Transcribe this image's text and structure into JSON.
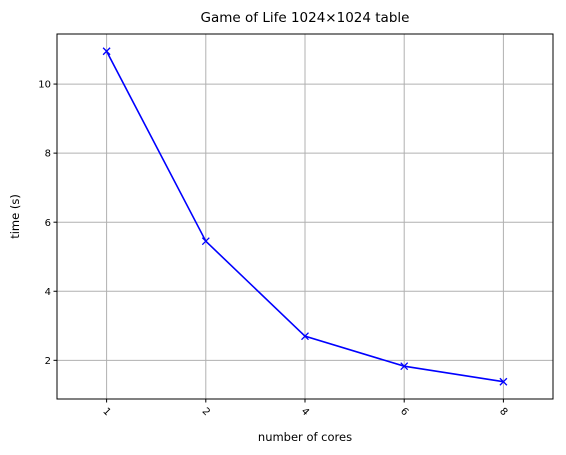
{
  "chart_data": {
    "type": "line",
    "title": "Game of Life 1024×1024 table",
    "xlabel": "number of cores",
    "ylabel": "time (s)",
    "categories": [
      "1",
      "2",
      "4",
      "6",
      "8"
    ],
    "series": [
      {
        "values": [
          10.95,
          5.45,
          2.7,
          1.83,
          1.38
        ],
        "color": "#0000ff",
        "marker": "x"
      }
    ],
    "ylim": [
      0.88,
      11.45
    ],
    "yticks": [
      2,
      4,
      6,
      8,
      10
    ],
    "xtick_rotation": 45,
    "grid": true,
    "legend": "none"
  }
}
